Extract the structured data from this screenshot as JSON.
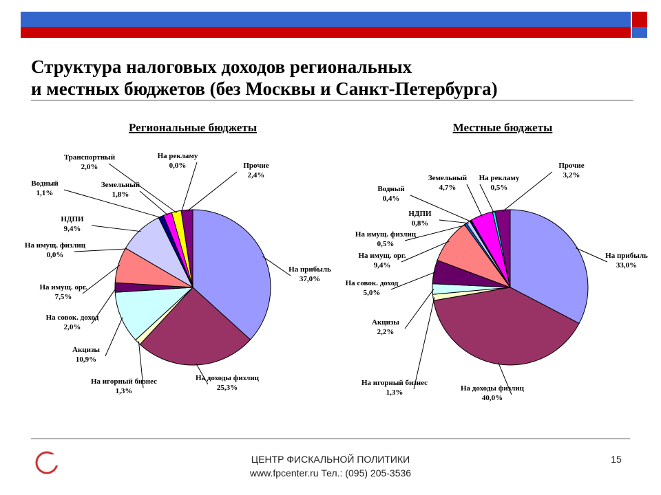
{
  "header": {
    "title": [
      "Структура налоговых доходов региональных",
      "и местных бюджетов (без Москвы и Санкт-Петербурга)"
    ]
  },
  "chart_data": [
    {
      "type": "pie",
      "title": "Региональные бюджеты",
      "categories": [
        "На прибыль",
        "На доходы физлиц",
        "На игорный бизнес",
        "Акцизы",
        "На совок. доход",
        "На имущ. орг.",
        "На имущ. физлиц",
        "НДПИ",
        "Водный",
        "Земельный",
        "Транспортный",
        "На рекламу",
        "Прочие"
      ],
      "values": [
        37.0,
        25.3,
        1.3,
        10.9,
        2.0,
        7.5,
        0.0,
        9.4,
        1.1,
        1.8,
        2.0,
        0.0,
        2.4
      ],
      "value_labels": [
        "37,0%",
        "25,3%",
        "1,3%",
        "10,9%",
        "2,0%",
        "7,5%",
        "0,0%",
        "9,4%",
        "1,1%",
        "1,8%",
        "2,0%",
        "0,0%",
        "2,4%"
      ],
      "colors": [
        "#9999ff",
        "#993366",
        "#ffffcc",
        "#ccffff",
        "#660066",
        "#ff8080",
        "#0066cc",
        "#ccccff",
        "#000080",
        "#ff00ff",
        "#ffff00",
        "#00ffff",
        "#800080"
      ]
    },
    {
      "type": "pie",
      "title": "Местные бюджеты",
      "categories": [
        "На прибыль",
        "На доходы физлиц",
        "На игорный бизнес",
        "Акцизы",
        "На совок. доход",
        "На имущ. орг.",
        "На имущ. физлиц",
        "НДПИ",
        "Водный",
        "Земельный",
        "На рекламу",
        "Прочие"
      ],
      "values": [
        33.0,
        40.0,
        1.3,
        2.2,
        5.0,
        9.4,
        0.5,
        0.8,
        0.4,
        4.7,
        0.5,
        3.2
      ],
      "value_labels": [
        "33,0%",
        "40,0%",
        "1,3%",
        "2,2%",
        "5,0%",
        "9,4%",
        "0,5%",
        "0,8%",
        "0,4%",
        "4,7%",
        "0,5%",
        "3,2%"
      ],
      "colors": [
        "#9999ff",
        "#993366",
        "#ffffcc",
        "#ccffff",
        "#660066",
        "#ff8080",
        "#0066cc",
        "#ccccff",
        "#000080",
        "#ff00ff",
        "#00ffff",
        "#800080"
      ]
    }
  ],
  "footer": {
    "org": "ЦЕНТР ФИСКАЛЬНОЙ ПОЛИТИКИ",
    "contacts": "www.fpcenter.ru  Тел.: (095) 205-3536",
    "page": "15"
  }
}
